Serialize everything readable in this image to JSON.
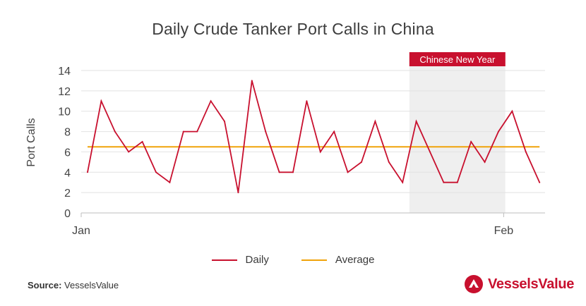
{
  "title": "Daily Crude Tanker Port Calls in China",
  "chart_data": {
    "type": "line",
    "title": "Daily Crude Tanker Port Calls in China",
    "xlabel": "",
    "ylabel": "Port Calls",
    "ylim": [
      0,
      14
    ],
    "yticks": [
      "0",
      "2",
      "4",
      "6",
      "8",
      "10",
      "12",
      "14"
    ],
    "xtick_labels": [
      "Jan",
      "Feb"
    ],
    "grid": true,
    "series": [
      {
        "name": "Daily",
        "color": "#c8102e",
        "values": [
          4,
          11,
          8,
          6,
          7,
          4,
          3,
          8,
          8,
          11,
          9,
          2,
          13,
          8,
          4,
          4,
          11,
          6,
          8,
          4,
          5,
          9,
          5,
          3,
          9,
          6,
          3,
          3,
          7,
          5,
          8,
          10,
          6,
          3
        ]
      },
      {
        "name": "Average",
        "color": "#f0a30a",
        "values": [
          6.5
        ]
      }
    ],
    "annotation": {
      "label": "Chinese New Year",
      "day_start": 23.5,
      "day_end": 30.5,
      "shade_color": "#efefef",
      "label_bg": "#c8102e"
    },
    "legend_position": "bottom"
  },
  "source": {
    "label": "Source:",
    "text": "VesselsValue"
  },
  "logo": {
    "text": "VesselsValue",
    "color": "#c8102e"
  }
}
